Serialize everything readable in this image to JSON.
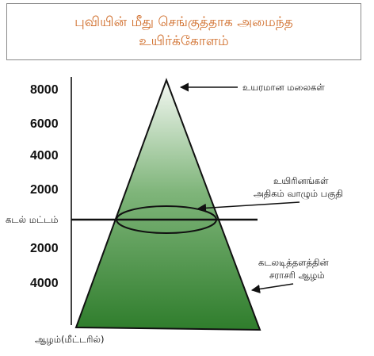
{
  "title": {
    "line1": "புவியின் மீது செங்குத்தாக அமைந்த",
    "line2": "உயிர்க்கோளம்"
  },
  "colors": {
    "title": "#d06d2a",
    "pyramid_top": "#f4f8f3",
    "pyramid_bottom": "#2f7d2c"
  },
  "axis": {
    "ticks_above": [
      "8000",
      "6000",
      "4000",
      "2000"
    ],
    "sea_level_label": "கடல் மட்டம்",
    "ticks_below": [
      "2000",
      "4000"
    ],
    "bottom_label": "ஆழம்(மீட்டரில்)"
  },
  "annotations": {
    "mountains": "உயரமான மலைகள்",
    "life_zone_line1": "உயிரினங்கள்",
    "life_zone_line2": "அதிகம் வாழும் பகுதி",
    "ocean_depth_line1": "கடலடித்தளத்தின்",
    "ocean_depth_line2": "சராசரி ஆழம்"
  }
}
